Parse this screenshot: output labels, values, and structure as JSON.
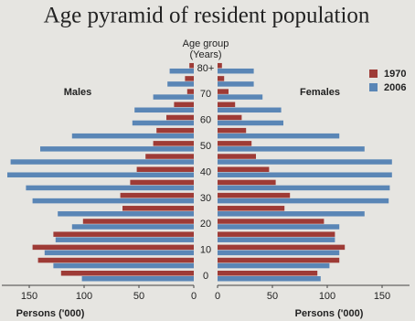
{
  "chart_data": {
    "type": "pyramid",
    "title": "Age pyramid of resident population",
    "y_label": "Age group",
    "y_unit": "(Years)",
    "left_label": "Males",
    "right_label": "Females",
    "xlabel": "Persons ('000)",
    "categories": [
      "0",
      null,
      "10",
      null,
      "20",
      null,
      "30",
      null,
      "40",
      null,
      "50",
      null,
      "60",
      null,
      "70",
      null,
      "80+"
    ],
    "series": [
      {
        "name": "1970",
        "color": "#9e3b36",
        "males": [
          121,
          142,
          147,
          128,
          101,
          65,
          67,
          58,
          52,
          44,
          37,
          34,
          25,
          18,
          6,
          8,
          4
        ],
        "females": [
          91,
          111,
          116,
          107,
          97,
          61,
          66,
          53,
          47,
          35,
          31,
          26,
          22,
          16,
          10,
          6,
          4
        ]
      },
      {
        "name": "2006",
        "color": "#5a86b6",
        "males": [
          102,
          128,
          136,
          126,
          111,
          124,
          147,
          153,
          170,
          167,
          140,
          111,
          56,
          54,
          37,
          24,
          22
        ],
        "females": [
          94,
          102,
          111,
          107,
          111,
          134,
          156,
          157,
          159,
          159,
          134,
          111,
          60,
          58,
          41,
          33,
          33
        ]
      }
    ],
    "xlim": [
      0,
      175
    ],
    "xticks": [
      0,
      50,
      100,
      150
    ]
  }
}
